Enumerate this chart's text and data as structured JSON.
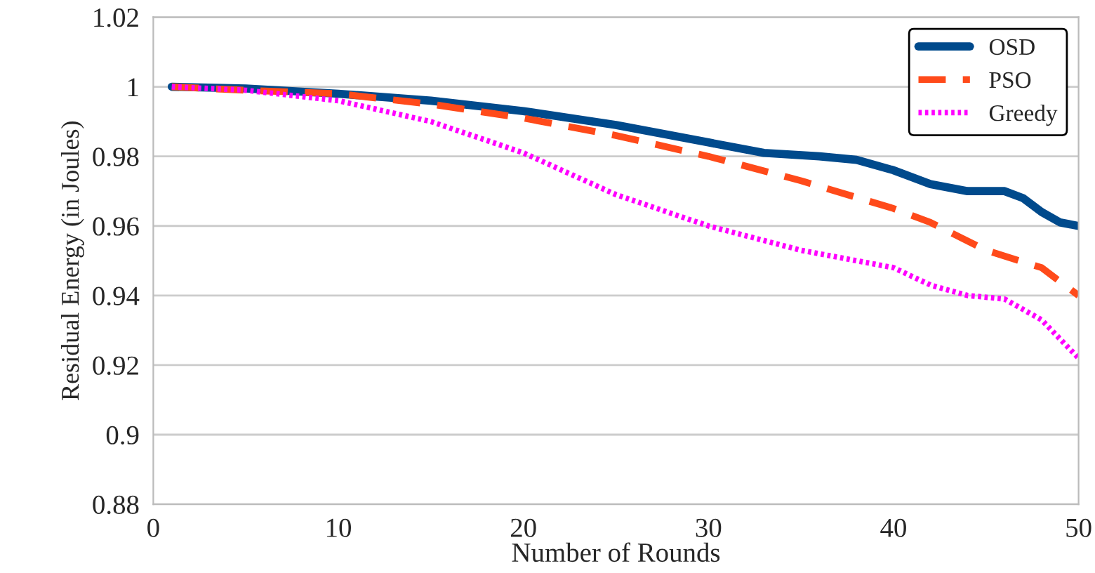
{
  "chart_data": {
    "type": "line",
    "xlabel": "Number of Rounds",
    "ylabel": "Residual Energy (in Joules)",
    "xlim": [
      0,
      50
    ],
    "xticks": [
      0,
      10,
      20,
      30,
      40,
      50
    ],
    "ylim": [
      0.88,
      1.02
    ],
    "yticks": [
      0.88,
      0.9,
      0.92,
      0.94,
      0.96,
      0.98,
      {
        "value": 1,
        "label": "1"
      },
      1.02
    ],
    "grid": "y",
    "legend": "top right",
    "marker": "none",
    "series": [
      {
        "name": "OSD",
        "color": "#004a8c",
        "line_style": "solid",
        "x": [
          1,
          5,
          10,
          15,
          20,
          25,
          30,
          33,
          36,
          38,
          40,
          42,
          44,
          46,
          47,
          48,
          49,
          50
        ],
        "values": [
          1.0,
          0.9995,
          0.998,
          0.996,
          0.993,
          0.989,
          0.984,
          0.981,
          0.98,
          0.979,
          0.976,
          0.972,
          0.97,
          0.97,
          0.968,
          0.964,
          0.961,
          0.96
        ]
      },
      {
        "name": "PSO",
        "color": "#ff4a1a",
        "line_style": "dashed",
        "x": [
          1,
          5,
          10,
          15,
          20,
          25,
          30,
          35,
          40,
          42,
          45,
          48,
          50
        ],
        "values": [
          1.0,
          0.999,
          0.998,
          0.995,
          0.991,
          0.986,
          0.98,
          0.973,
          0.965,
          0.961,
          0.953,
          0.948,
          0.94
        ]
      },
      {
        "name": "Greedy",
        "color": "#ff00ff",
        "line_style": "dotted",
        "x": [
          1,
          5,
          10,
          15,
          20,
          25,
          30,
          35,
          38,
          40,
          42,
          44,
          46,
          48,
          50
        ],
        "values": [
          1.0,
          0.999,
          0.996,
          0.99,
          0.981,
          0.969,
          0.96,
          0.953,
          0.95,
          0.948,
          0.943,
          0.94,
          0.939,
          0.933,
          0.922
        ]
      }
    ]
  }
}
